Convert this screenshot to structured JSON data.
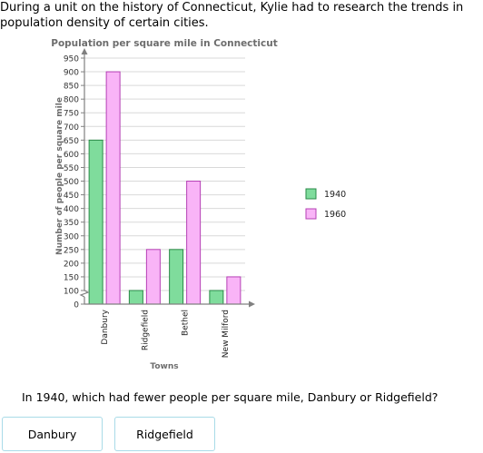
{
  "prompt": {
    "intro": "During a unit on the history of Connecticut, Kylie had to research the trends in population density of certain cities.",
    "question": "In 1940, which had fewer people per square mile, Danbury or Ridgefield?"
  },
  "answers": [
    "Danbury",
    "Ridgefield"
  ],
  "chart_data": {
    "type": "bar",
    "title": "Population per square mile in Connecticut",
    "xlabel": "Towns",
    "ylabel": "Number of people per square mile",
    "categories": [
      "Danbury",
      "Ridgefield",
      "Bethel",
      "New Milford"
    ],
    "series": [
      {
        "name": "1940",
        "values": [
          650,
          100,
          250,
          100
        ],
        "color": "#7fdc9c",
        "stroke": "#2a8a47"
      },
      {
        "name": "1960",
        "values": [
          900,
          250,
          500,
          150
        ],
        "color": "#f9b4f7",
        "stroke": "#b540b5"
      }
    ],
    "yticks": [
      0,
      100,
      150,
      200,
      250,
      300,
      350,
      400,
      450,
      500,
      550,
      600,
      650,
      700,
      750,
      800,
      850,
      900,
      950
    ],
    "ylim": [
      0,
      950
    ],
    "axis_break": true,
    "grid": true,
    "legend_position": "right"
  }
}
